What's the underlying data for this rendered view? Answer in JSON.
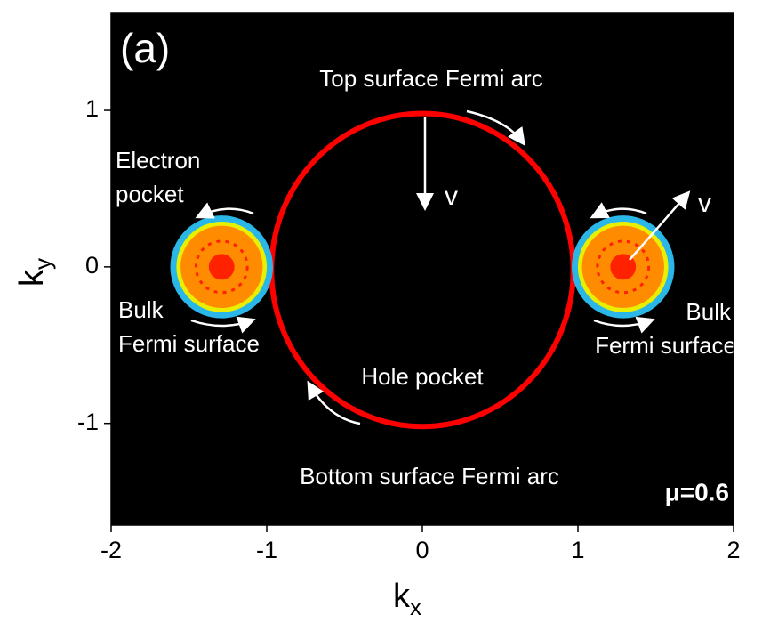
{
  "chart_data": {
    "type": "fermi-surface",
    "panel_label": "(a)",
    "x_label": "k",
    "x_label_sub": "x",
    "y_label": "k",
    "y_label_sub": "y",
    "xlim": [
      -2,
      2
    ],
    "xticks": [
      -2,
      -1,
      0,
      1,
      2
    ],
    "ylim": [
      -1.65,
      1.62
    ],
    "yticks": [
      -1,
      0,
      1
    ],
    "background": "#000000",
    "hole_pocket": {
      "center_x": 0,
      "center_y": -0.02,
      "rx": 0.97,
      "ry": 1.0,
      "color": "#ff0000"
    },
    "electron_pockets": [
      {
        "center_x": -1.29,
        "center_y": 0,
        "radius": 0.33
      },
      {
        "center_x": 1.29,
        "center_y": 0,
        "radius": 0.33
      }
    ],
    "pocket_colors": [
      "#2ab7e8",
      "#e8f000",
      "#ff8c00",
      "#ff2200"
    ],
    "annotations": {
      "top_arc": "Top surface Fermi arc",
      "bottom_arc": "Bottom surface Fermi arc",
      "electron_pocket": [
        "Electron",
        "pocket"
      ],
      "hole_pocket": "Hole pocket",
      "bulk_left": [
        "Bulk",
        "Fermi surface"
      ],
      "bulk_right": [
        "Bulk",
        "Fermi surface"
      ],
      "velocity_center": "v",
      "velocity_right": "v",
      "mu": "μ=0.6"
    }
  }
}
